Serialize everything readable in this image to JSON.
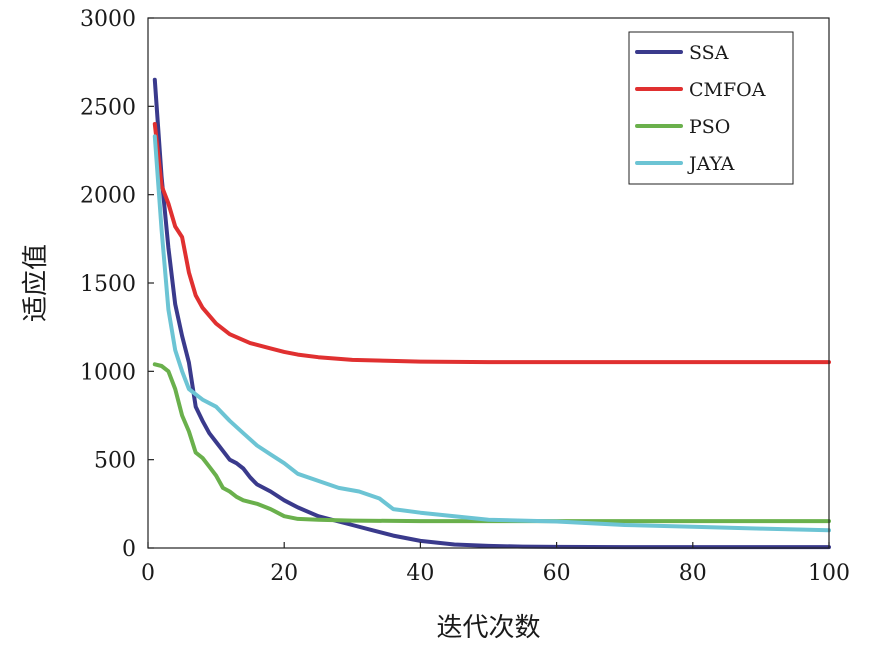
{
  "chart_data": {
    "type": "line",
    "title": "",
    "xlabel": "迭代次数",
    "ylabel": "适应值",
    "xlim": [
      0,
      100
    ],
    "ylim": [
      0,
      3000
    ],
    "xticks": [
      "0",
      "20",
      "40",
      "60",
      "80",
      "100"
    ],
    "yticks": [
      "0",
      "500",
      "1000",
      "1500",
      "2000",
      "2500",
      "3000"
    ],
    "grid": false,
    "legend_position": "top-right",
    "series": [
      {
        "name": "SSA",
        "color": "#3a3a8c",
        "x": [
          1,
          2,
          3,
          4,
          5,
          6,
          7,
          8,
          9,
          10,
          11,
          12,
          13,
          14,
          15,
          16,
          18,
          20,
          22,
          25,
          28,
          30,
          33,
          36,
          40,
          45,
          50,
          55,
          60,
          70,
          80,
          90,
          100
        ],
        "y": [
          2650,
          2100,
          1700,
          1380,
          1200,
          1050,
          800,
          720,
          650,
          600,
          550,
          500,
          480,
          450,
          400,
          360,
          320,
          270,
          230,
          180,
          150,
          130,
          100,
          70,
          40,
          20,
          12,
          8,
          6,
          5,
          5,
          5,
          5
        ]
      },
      {
        "name": "CMFOA",
        "color": "#e03030",
        "x": [
          1,
          2,
          3,
          4,
          5,
          6,
          7,
          8,
          10,
          12,
          15,
          18,
          20,
          22,
          25,
          30,
          35,
          40,
          50,
          60,
          70,
          80,
          90,
          100
        ],
        "y": [
          2400,
          2050,
          1950,
          1820,
          1760,
          1560,
          1430,
          1360,
          1270,
          1210,
          1160,
          1130,
          1110,
          1095,
          1080,
          1065,
          1060,
          1055,
          1052,
          1052,
          1052,
          1052,
          1052,
          1052
        ]
      },
      {
        "name": "PSO",
        "color": "#6ab04c",
        "x": [
          1,
          2,
          3,
          4,
          5,
          6,
          7,
          8,
          9,
          10,
          11,
          12,
          13,
          14,
          15,
          16,
          18,
          20,
          22,
          25,
          30,
          40,
          50,
          60,
          70,
          80,
          90,
          100
        ],
        "y": [
          1040,
          1030,
          1000,
          900,
          750,
          660,
          540,
          510,
          460,
          410,
          340,
          320,
          290,
          270,
          260,
          250,
          220,
          180,
          165,
          160,
          155,
          152,
          152,
          152,
          152,
          152,
          152,
          152
        ]
      },
      {
        "name": "JAYA",
        "color": "#6cc4d4",
        "x": [
          1,
          2,
          3,
          4,
          5,
          6,
          7,
          8,
          10,
          12,
          14,
          16,
          18,
          20,
          22,
          25,
          28,
          31,
          34,
          36,
          40,
          45,
          50,
          55,
          60,
          65,
          70,
          80,
          90,
          100
        ],
        "y": [
          2330,
          1800,
          1350,
          1120,
          1000,
          900,
          870,
          840,
          800,
          720,
          650,
          580,
          530,
          480,
          420,
          380,
          340,
          320,
          280,
          220,
          200,
          180,
          160,
          155,
          150,
          140,
          130,
          120,
          110,
          100
        ]
      }
    ]
  }
}
